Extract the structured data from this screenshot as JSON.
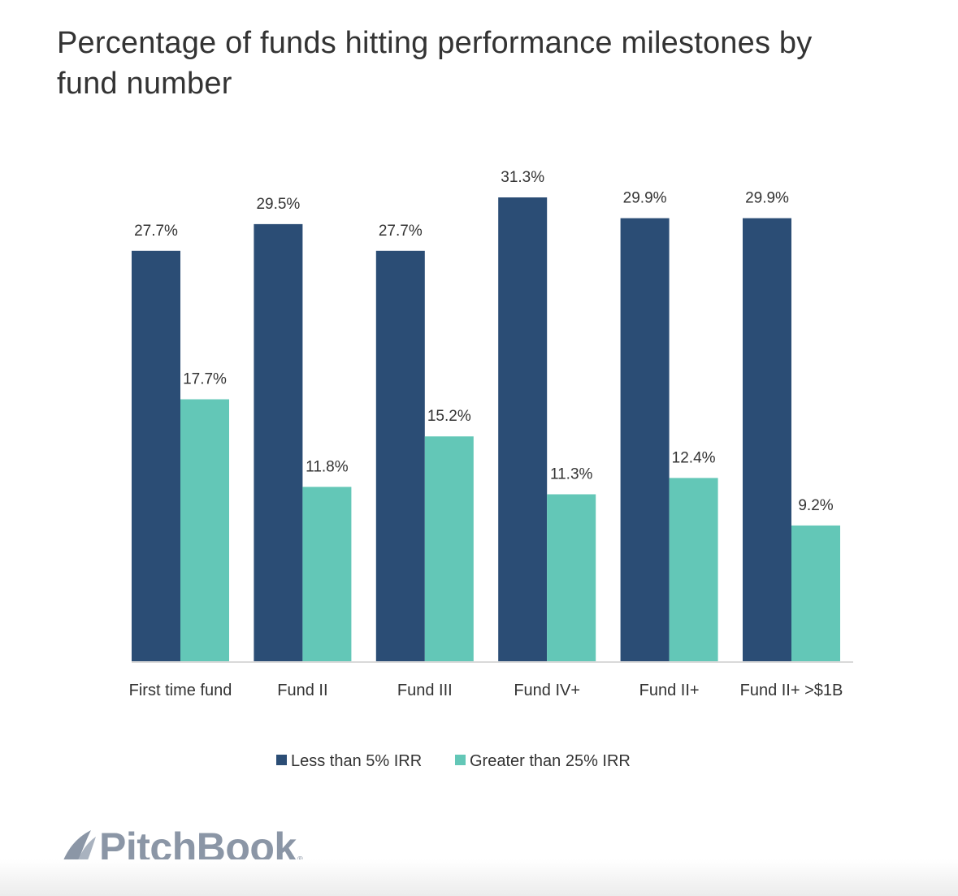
{
  "colors": {
    "series1": "#2b4d75",
    "series2": "#63c7b7",
    "text": "#333333",
    "axis": "#d9d9d9",
    "brand": "#8b96a6"
  },
  "brand": {
    "name": "PitchBook",
    "registered_mark": "®"
  },
  "chart_data": {
    "type": "bar",
    "title": "Percentage of funds hitting performance milestones by fund number",
    "xlabel": "",
    "ylabel": "",
    "ylim": [
      0,
      33
    ],
    "grid": false,
    "legend_position": "bottom-center",
    "categories": [
      "First time fund",
      "Fund II",
      "Fund III",
      "Fund IV+",
      "Fund II+",
      "Fund II+ >$1B"
    ],
    "series": [
      {
        "name": "Less than 5% IRR",
        "values": [
          27.7,
          29.5,
          27.7,
          31.3,
          29.9,
          29.9
        ],
        "labels": [
          "27.7%",
          "29.5%",
          "27.7%",
          "31.3%",
          "29.9%",
          "29.9%"
        ]
      },
      {
        "name": "Greater than 25% IRR",
        "values": [
          17.7,
          11.8,
          15.2,
          11.3,
          12.4,
          9.2
        ],
        "labels": [
          "17.7%",
          "11.8%",
          "15.2%",
          "11.3%",
          "12.4%",
          "9.2%"
        ]
      }
    ]
  }
}
